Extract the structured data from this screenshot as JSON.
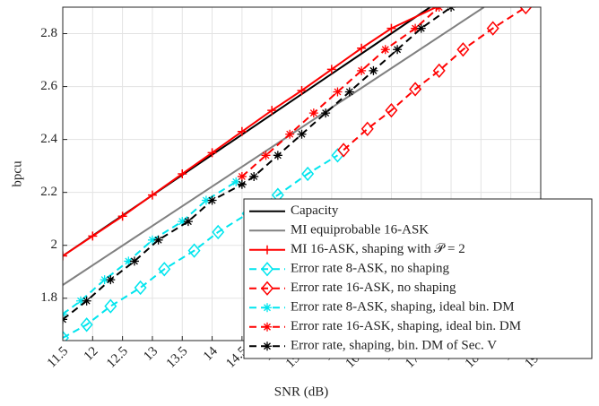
{
  "chart_data": {
    "type": "line",
    "x_label": "SNR (dB)",
    "y_label": "bpcu",
    "xlim": [
      11.5,
      19.5
    ],
    "ylim": [
      1.64,
      2.9
    ],
    "xticks": [
      11.5,
      12,
      12.5,
      13,
      13.5,
      14,
      14.5,
      15,
      15.5,
      16,
      16.5,
      17,
      17.5,
      18,
      18.5,
      19,
      19.5
    ],
    "yticks": [
      1.8,
      2,
      2.2,
      2.4,
      2.6,
      2.8
    ],
    "grid": true,
    "legend_position": "lower-right",
    "series": [
      {
        "name": "Capacity",
        "color": "#000000",
        "dash": "solid",
        "marker": "none",
        "x": [
          11.5,
          17.65
        ],
        "values": [
          1.96,
          2.9
        ]
      },
      {
        "name": "MI equiprobable 16-ASK",
        "color": "#808080",
        "dash": "solid",
        "marker": "none",
        "x": [
          11.5,
          18.55
        ],
        "values": [
          1.85,
          2.9
        ]
      },
      {
        "name": "MI 16-ASK, shaping with 𝒫 = 2",
        "color": "#ff0000",
        "dash": "solid",
        "marker": "plus",
        "x": [
          11.5,
          12,
          12.5,
          13,
          13.5,
          14,
          14.5,
          15,
          15.5,
          16,
          16.5,
          17,
          17.75
        ],
        "values": [
          1.96,
          2.035,
          2.11,
          2.19,
          2.27,
          2.35,
          2.43,
          2.51,
          2.585,
          2.665,
          2.745,
          2.82,
          2.9
        ]
      },
      {
        "name": "Error rate 8-ASK, no shaping",
        "color": "#00e5ee",
        "dash": "dash",
        "marker": "diamond",
        "x": [
          11.5,
          11.9,
          12.3,
          12.8,
          13.2,
          13.7,
          14.1,
          14.6,
          15.1,
          15.6,
          16.1
        ],
        "values": [
          1.65,
          1.7,
          1.77,
          1.84,
          1.91,
          1.98,
          2.05,
          2.12,
          2.19,
          2.27,
          2.34
        ]
      },
      {
        "name": "Error rate 16-ASK, no shaping",
        "color": "#ff0000",
        "dash": "dash",
        "marker": "diamond",
        "x": [
          16.2,
          16.6,
          17.0,
          17.4,
          17.8,
          18.2,
          18.7,
          19.25
        ],
        "values": [
          2.36,
          2.44,
          2.51,
          2.59,
          2.66,
          2.74,
          2.82,
          2.9
        ]
      },
      {
        "name": "Error rate 8-ASK, shaping, ideal bin. DM",
        "color": "#00e5ee",
        "dash": "dash",
        "marker": "asterisk",
        "x": [
          11.5,
          11.8,
          12.2,
          12.6,
          13.0,
          13.5,
          13.9,
          14.4
        ],
        "values": [
          1.74,
          1.79,
          1.87,
          1.94,
          2.02,
          2.09,
          2.17,
          2.24
        ]
      },
      {
        "name": "Error rate 16-ASK, shaping, ideal bin. DM",
        "color": "#ff0000",
        "dash": "dash",
        "marker": "asterisk",
        "x": [
          14.5,
          14.9,
          15.3,
          15.7,
          16.1,
          16.5,
          16.9,
          17.4,
          17.8
        ],
        "values": [
          2.26,
          2.34,
          2.42,
          2.5,
          2.58,
          2.66,
          2.74,
          2.82,
          2.9
        ]
      },
      {
        "name": "Error rate, shaping, bin. DM of Sec. V",
        "color": "#000000",
        "dash": "dash",
        "marker": "asterisk",
        "x": [
          11.5,
          11.9,
          12.3,
          12.7,
          13.1,
          13.6,
          14.0,
          14.5,
          14.7,
          15.1,
          15.5,
          15.9,
          16.3,
          16.7,
          17.1,
          17.5,
          18.0
        ],
        "values": [
          1.72,
          1.79,
          1.87,
          1.94,
          2.02,
          2.09,
          2.17,
          2.23,
          2.26,
          2.34,
          2.42,
          2.5,
          2.58,
          2.66,
          2.74,
          2.82,
          2.9
        ]
      }
    ]
  }
}
